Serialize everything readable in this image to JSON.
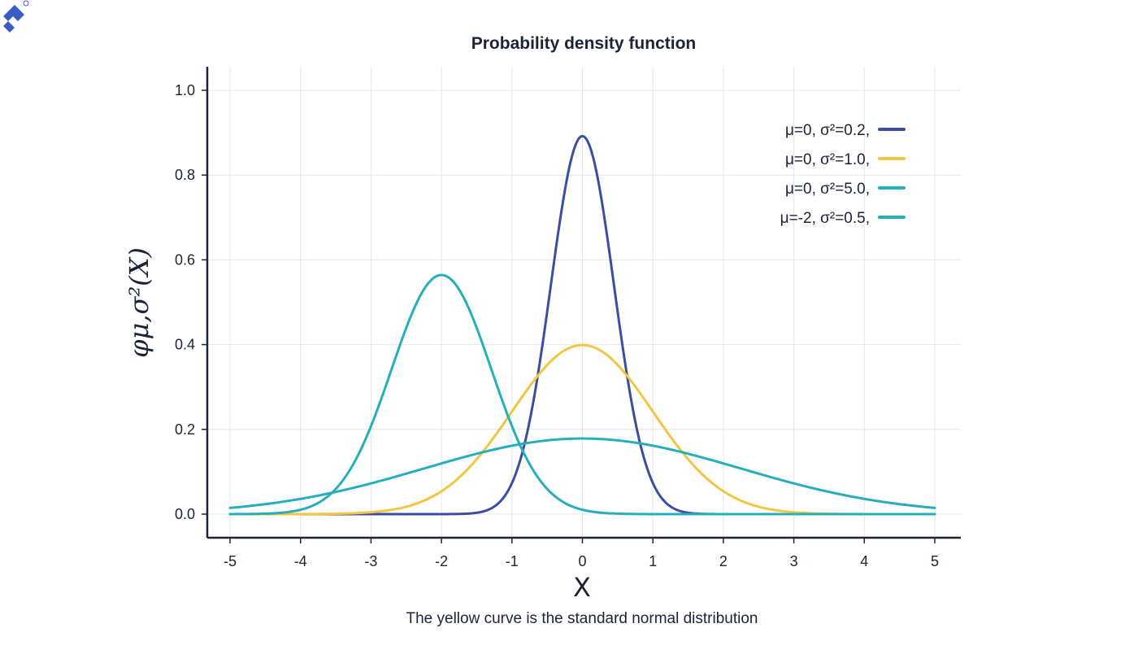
{
  "chart_data": {
    "type": "line",
    "title": "Probability density function",
    "xlabel": "X",
    "ylabel": "φμ,σ²(X)",
    "caption": "The yellow curve is the standard normal distribution",
    "xlim": [
      -5,
      5
    ],
    "ylim": [
      0,
      1.0
    ],
    "x_ticks": [
      "-5",
      "-4",
      "-3",
      "-2",
      "-1",
      "0",
      "1",
      "2",
      "3",
      "4",
      "5"
    ],
    "y_ticks": [
      "0.0",
      "0.2",
      "0.4",
      "0.6",
      "0.8",
      "1.0"
    ],
    "grid": true,
    "legend_position": "top-right",
    "series": [
      {
        "name": "μ=0,  σ²=0.2,",
        "mu": 0,
        "variance": 0.2,
        "color": "#3b4da3",
        "peak": 0.892
      },
      {
        "name": "μ=0,  σ²=1.0,",
        "mu": 0,
        "variance": 1.0,
        "color": "#f4c542",
        "peak": 0.399
      },
      {
        "name": "μ=0,  σ²=5.0,",
        "mu": 0,
        "variance": 5.0,
        "color": "#27aebd",
        "peak": 0.178
      },
      {
        "name": "μ=-2, σ²=0.5,",
        "mu": -2,
        "variance": 0.5,
        "color": "#27aebd",
        "peak": 0.564
      }
    ]
  },
  "logo": {
    "name": "brand-logo-icon",
    "color": "#3b5cc4"
  }
}
